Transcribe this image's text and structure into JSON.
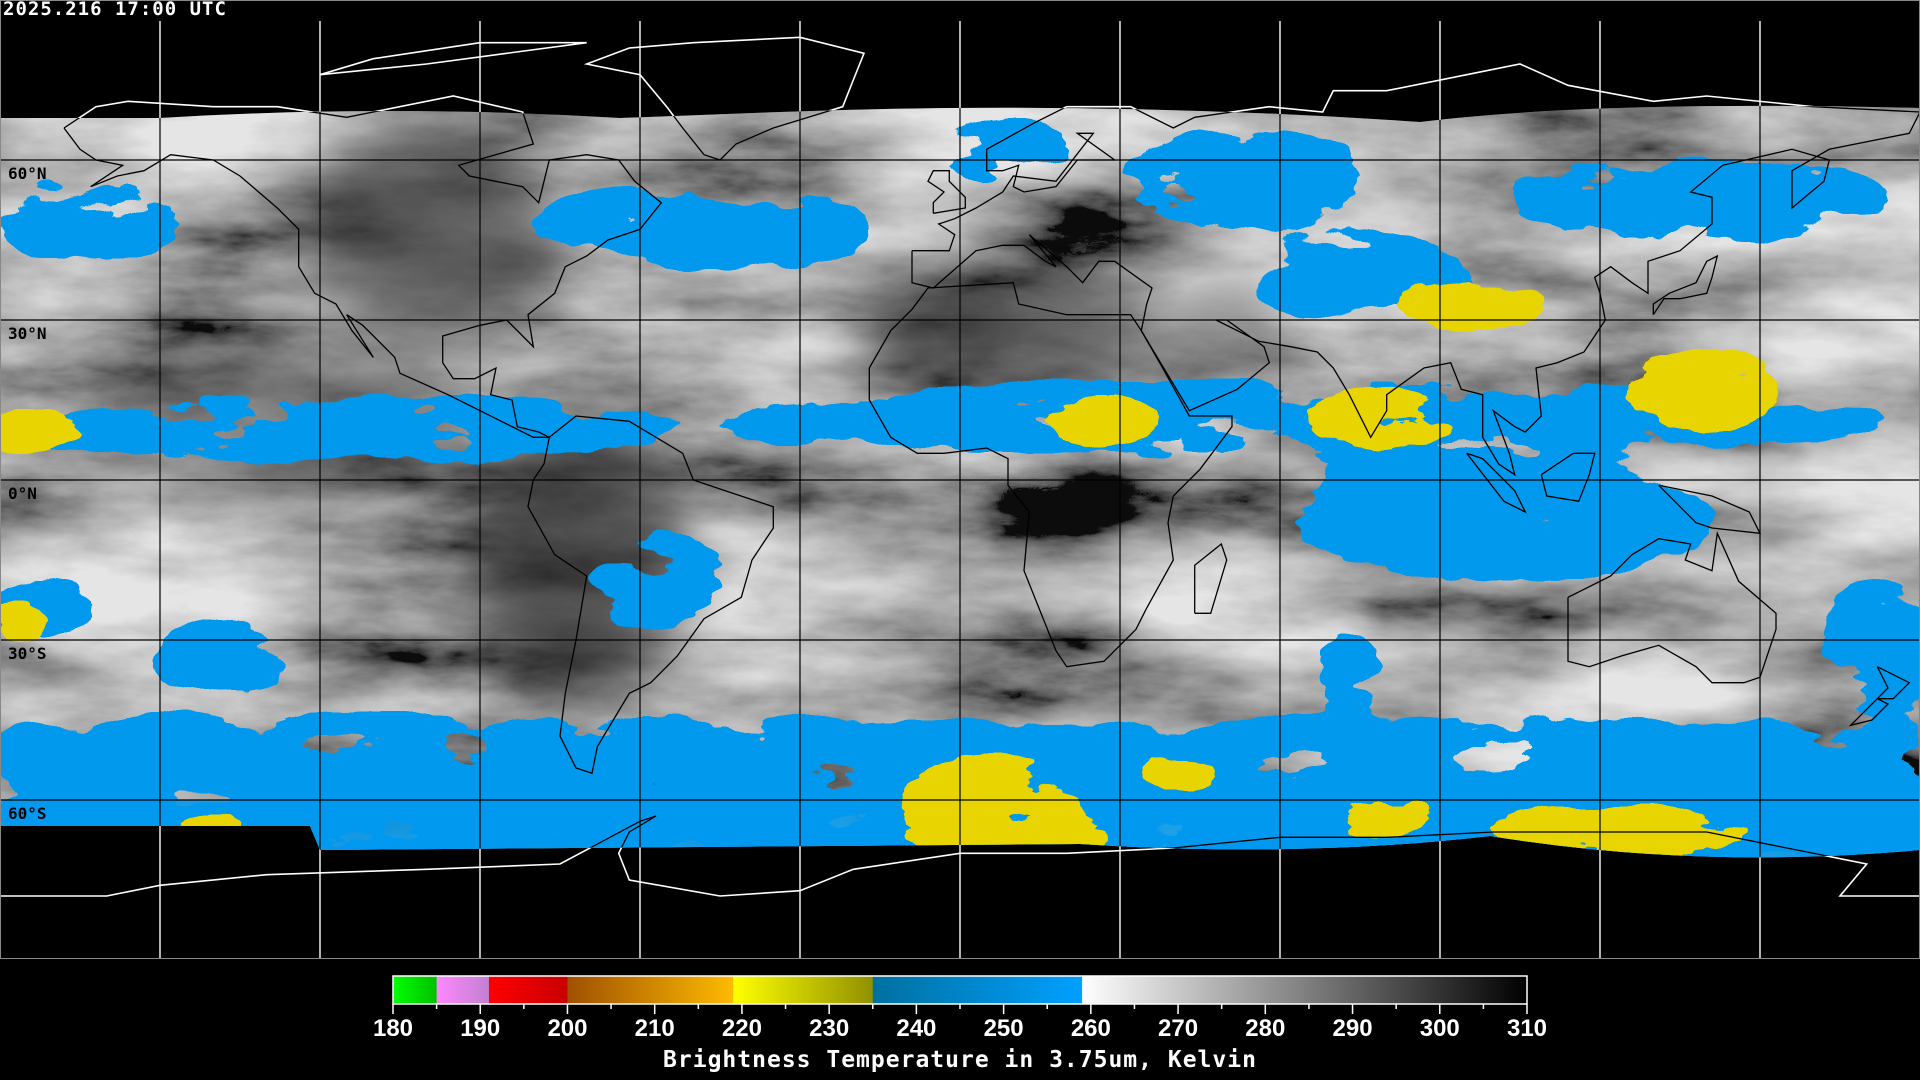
{
  "header": {
    "timestamp": "2025.216 17:00 UTC"
  },
  "map": {
    "lat_labels": [
      {
        "lat": 60,
        "text": "60°N"
      },
      {
        "lat": 30,
        "text": "30°N"
      },
      {
        "lat": 0,
        "text": "0°N"
      },
      {
        "lat": -30,
        "text": "30°S"
      },
      {
        "lat": -60,
        "text": "60°S"
      }
    ],
    "colors": {
      "cold_cloud": "#0099ee",
      "very_cold_cloud": "#e8d400",
      "coldest": "#ff9a00",
      "coastline_day": "#000000",
      "coastline_outside": "#ffffff"
    }
  },
  "colorbar": {
    "title": "Brightness Temperature in 3.75um, Kelvin",
    "min": 180,
    "max": 310,
    "tick_labels": [
      "180",
      "190",
      "200",
      "210",
      "220",
      "230",
      "240",
      "250",
      "260",
      "270",
      "280",
      "290",
      "300",
      "310"
    ],
    "segments": [
      {
        "from": 180,
        "to": 185,
        "colors": [
          "#00ff00",
          "#00c000"
        ]
      },
      {
        "from": 185,
        "to": 191,
        "colors": [
          "#ff88ff",
          "#c080d0"
        ]
      },
      {
        "from": 191,
        "to": 200,
        "colors": [
          "#ff0000",
          "#c80000"
        ]
      },
      {
        "from": 200,
        "to": 219,
        "colors": [
          "#a05000",
          "#ffbb00"
        ]
      },
      {
        "from": 219,
        "to": 235,
        "colors": [
          "#ffff00",
          "#909000"
        ]
      },
      {
        "from": 235,
        "to": 259,
        "colors": [
          "#0070a0",
          "#00a0ff"
        ]
      },
      {
        "from": 259,
        "to": 310,
        "colors": [
          "#ffffff",
          "#000000"
        ]
      }
    ]
  }
}
